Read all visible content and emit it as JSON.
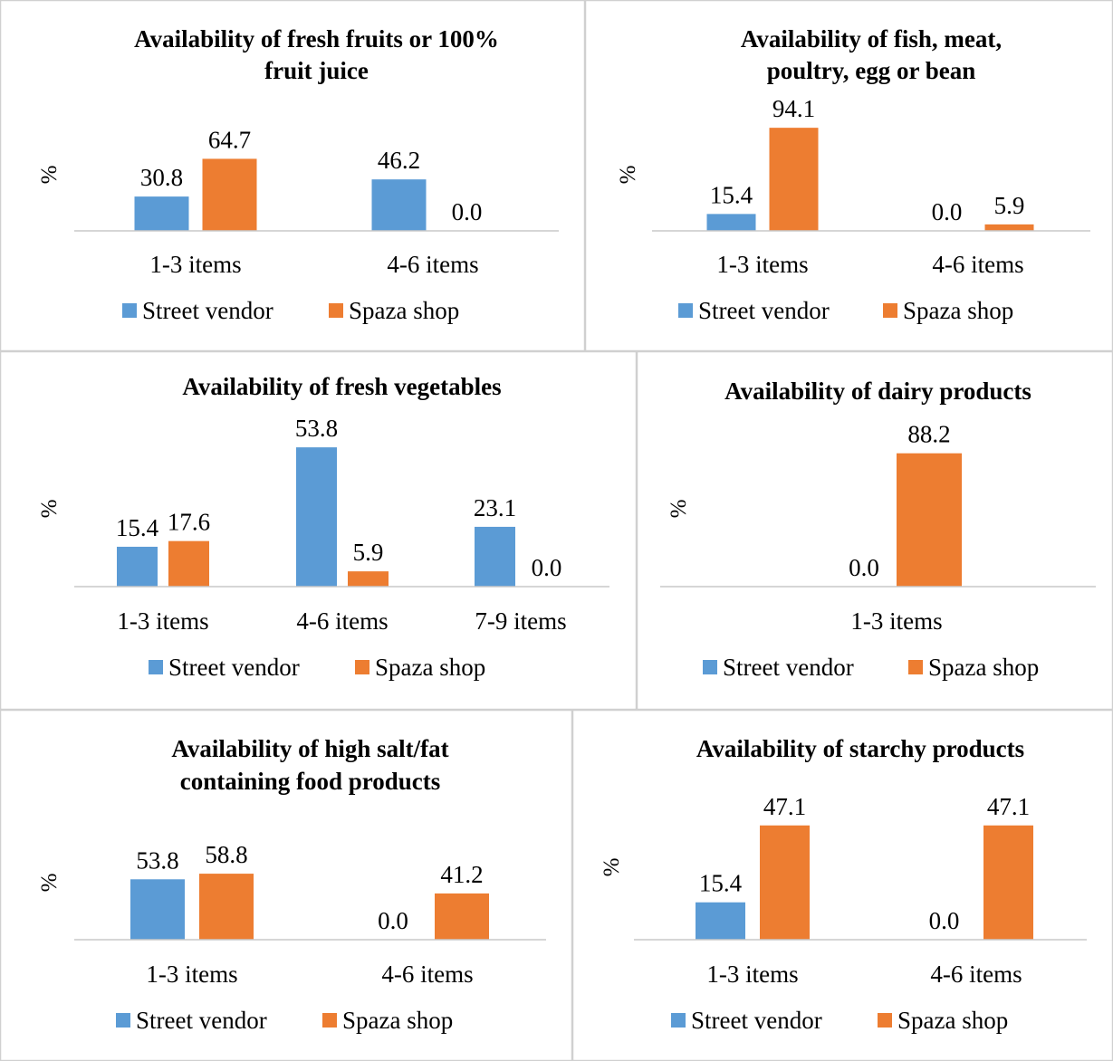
{
  "legend": {
    "street_vendor": "Street vendor",
    "spaza_shop": "Spaza shop"
  },
  "colors": {
    "street_vendor": "#5b9bd5",
    "spaza_shop": "#ed7d31"
  },
  "chart_data": [
    {
      "type": "bar",
      "title": "Availability of fresh fruits or 100% fruit juice",
      "title_lines": [
        "Availability of fresh fruits or 100%",
        "fruit juice"
      ],
      "ylabel": "%",
      "categories": [
        "1-3 items",
        "4-6 items"
      ],
      "series": [
        {
          "name": "Street vendor",
          "values": [
            30.8,
            46.2
          ],
          "labels": [
            "30.8",
            "46.2"
          ]
        },
        {
          "name": "Spaza shop",
          "values": [
            64.7,
            0.0
          ],
          "labels": [
            "64.7",
            "0.0"
          ]
        }
      ],
      "legend_position": "bottom",
      "grid": false
    },
    {
      "type": "bar",
      "title": "Availability of fish, meat, poultry, egg or bean",
      "title_lines": [
        "Availability of fish, meat,",
        "poultry, egg or bean"
      ],
      "ylabel": "%",
      "categories": [
        "1-3 items",
        "4-6 items"
      ],
      "series": [
        {
          "name": "Street vendor",
          "values": [
            15.4,
            0.0
          ],
          "labels": [
            "15.4",
            "0.0"
          ]
        },
        {
          "name": "Spaza shop",
          "values": [
            94.1,
            5.9
          ],
          "labels": [
            "94.1",
            "5.9"
          ]
        }
      ],
      "legend_position": "bottom",
      "grid": false
    },
    {
      "type": "bar",
      "title": "Availability of fresh vegetables",
      "title_lines": [
        "Availability of fresh vegetables"
      ],
      "ylabel": "%",
      "categories": [
        "1-3 items",
        "4-6 items",
        "7-9 items"
      ],
      "series": [
        {
          "name": "Street vendor",
          "values": [
            15.4,
            53.8,
            23.1
          ],
          "labels": [
            "15.4",
            "53.8",
            "23.1"
          ]
        },
        {
          "name": "Spaza shop",
          "values": [
            17.6,
            5.9,
            0.0
          ],
          "labels": [
            "17.6",
            "5.9",
            "0.0"
          ]
        }
      ],
      "legend_position": "bottom",
      "grid": false
    },
    {
      "type": "bar",
      "title": "Availability of dairy products",
      "title_lines": [
        "Availability of dairy products"
      ],
      "ylabel": "%",
      "categories": [
        "1-3 items"
      ],
      "series": [
        {
          "name": "Street vendor",
          "values": [
            0.0
          ],
          "labels": [
            "0.0"
          ]
        },
        {
          "name": "Spaza shop",
          "values": [
            88.2
          ],
          "labels": [
            "88.2"
          ]
        }
      ],
      "legend_position": "bottom",
      "grid": false
    },
    {
      "type": "bar",
      "title": "Availability of high salt/fat containing food products",
      "title_lines": [
        "Availability of high salt/fat",
        "containing food products"
      ],
      "ylabel": "%",
      "categories": [
        "1-3 items",
        "4-6 items"
      ],
      "series": [
        {
          "name": "Street vendor",
          "values": [
            53.8,
            0.0
          ],
          "labels": [
            "53.8",
            "0.0"
          ]
        },
        {
          "name": "Spaza shop",
          "values": [
            58.8,
            41.2
          ],
          "labels": [
            "58.8",
            "41.2"
          ]
        }
      ],
      "legend_position": "bottom",
      "grid": false
    },
    {
      "type": "bar",
      "title": "Availability of starchy products",
      "title_lines": [
        "Availability of starchy products"
      ],
      "ylabel": "%",
      "categories": [
        "1-3 items",
        "4-6 items"
      ],
      "series": [
        {
          "name": "Street vendor",
          "values": [
            15.4,
            0.0
          ],
          "labels": [
            "15.4",
            "0.0"
          ]
        },
        {
          "name": "Spaza shop",
          "values": [
            47.1,
            47.1
          ],
          "labels": [
            "47.1",
            "47.1"
          ]
        }
      ],
      "legend_position": "bottom",
      "grid": false
    }
  ]
}
